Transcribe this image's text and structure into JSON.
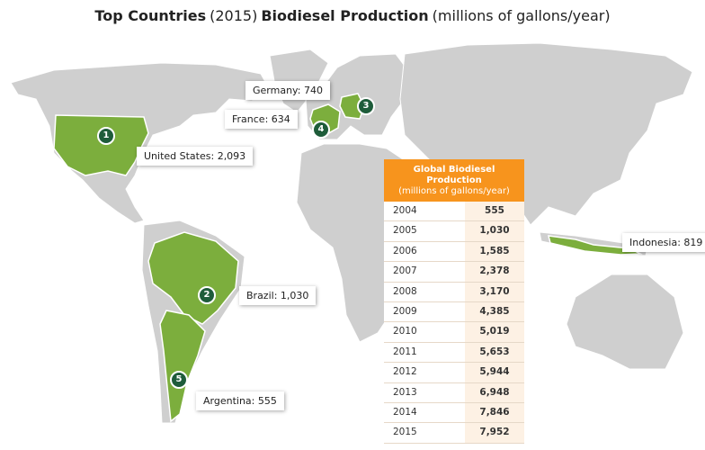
{
  "title": {
    "parts": [
      "Top Countries",
      "(2015)",
      "Biodiesel Production",
      "(millions of gallons/year)"
    ]
  },
  "countries": [
    {
      "rank": 1,
      "label": "United States: 2,093"
    },
    {
      "rank": 2,
      "label": "Brazil: 1,030"
    },
    {
      "rank": 3,
      "label": "Germany: 740"
    },
    {
      "rank": 4,
      "label": "France: 634"
    },
    {
      "rank": 5,
      "label": "Argentina: 555"
    },
    {
      "label": "Indonesia: 819"
    }
  ],
  "table": {
    "header": [
      "Global Biodiesel Production",
      "(millions of gallons/year)"
    ],
    "rows": [
      [
        "2004",
        "555"
      ],
      [
        "2005",
        "1,030"
      ],
      [
        "2006",
        "1,585"
      ],
      [
        "2007",
        "2,378"
      ],
      [
        "2008",
        "3,170"
      ],
      [
        "2009",
        "4,385"
      ],
      [
        "2010",
        "5,019"
      ],
      [
        "2011",
        "5,653"
      ],
      [
        "2012",
        "5,944"
      ],
      [
        "2013",
        "6,948"
      ],
      [
        "2014",
        "7,846"
      ],
      [
        "2015",
        "7,952"
      ]
    ]
  }
}
